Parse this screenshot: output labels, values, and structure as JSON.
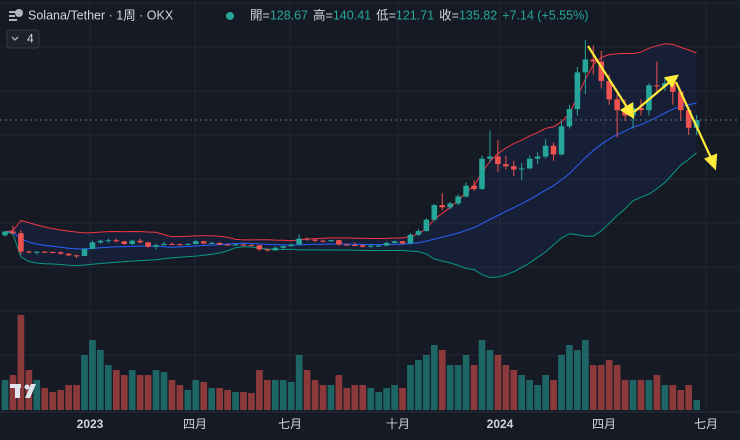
{
  "chart_data": {
    "type": "candlestick",
    "title": "Solana/Tether · 1周 · OKX",
    "badge": "4",
    "ohlc_labels": [
      "開=",
      "高=",
      "低=",
      "收="
    ],
    "change": "+7.14 (+5.55%)",
    "up_color": "#26a69a",
    "down_color": "#ef5350",
    "x_labels": [
      "2023",
      "四月",
      "七月",
      "十月",
      "2024",
      "四月",
      "七月"
    ],
    "candles": {
      "open": [
        29,
        32.5,
        31,
        14,
        13.5,
        13.8,
        13.5,
        13.3,
        12,
        10.5,
        9.9,
        16.5,
        22.5,
        24,
        24.5,
        23.5,
        21,
        24,
        22.5,
        18.5,
        20,
        21,
        20.8,
        20.5,
        21,
        23.5,
        21.5,
        22,
        20.5,
        20,
        20.5,
        20,
        19.8,
        16,
        15,
        17.5,
        19,
        20.5,
        26,
        25,
        24,
        23.5,
        24.5,
        20.5,
        20,
        19.8,
        18.5,
        19.5,
        19.5,
        22,
        23.5,
        21.5,
        29.5,
        33,
        43.5,
        57,
        55,
        58.5,
        65,
        75,
        72,
        100,
        102,
        95,
        93,
        90,
        91,
        100,
        102,
        112,
        104,
        130,
        146,
        180,
        192,
        190,
        172,
        155,
        145,
        140,
        147,
        145,
        168,
        167,
        170,
        162,
        145,
        128.67
      ],
      "high": [
        33,
        38,
        34,
        15,
        14.5,
        14.5,
        14,
        14,
        12.5,
        11,
        17,
        24,
        25,
        26,
        26,
        24,
        25,
        26,
        22.8,
        21,
        23,
        22.5,
        21.5,
        21.8,
        25,
        24,
        23,
        22.5,
        21,
        21,
        21,
        21,
        20,
        16.5,
        18.5,
        19.5,
        21,
        30,
        27,
        26,
        25,
        25,
        25,
        21.5,
        22.5,
        20.5,
        20,
        20,
        23,
        24,
        24,
        31,
        35,
        45,
        58,
        68,
        60,
        67,
        78,
        80,
        103,
        126,
        117,
        103,
        98,
        96,
        103,
        106,
        118,
        115,
        135,
        150,
        185,
        210,
        205,
        200,
        178,
        160,
        155,
        152,
        155,
        170,
        190,
        175,
        177,
        164,
        148,
        140.41
      ],
      "low": [
        28,
        30,
        11,
        12.5,
        11,
        12.5,
        12.5,
        11,
        9.5,
        8,
        9.8,
        16,
        21,
        22,
        22.5,
        20,
        20,
        21.5,
        17.5,
        16,
        19.5,
        20,
        19.5,
        20,
        20.5,
        20.5,
        21,
        20,
        19.5,
        19.5,
        19,
        19.5,
        14.5,
        14,
        14.8,
        16.5,
        18.5,
        20,
        24,
        22.5,
        22.5,
        23,
        19.5,
        19.5,
        19.5,
        17.5,
        17.5,
        18.5,
        19,
        21.5,
        20.5,
        21,
        28.5,
        32.5,
        42,
        52,
        53,
        57,
        64,
        70,
        71,
        97,
        88,
        90,
        84,
        80,
        90,
        95,
        100,
        98,
        103,
        128,
        140,
        160,
        178,
        165,
        150,
        120,
        135,
        128,
        140,
        140,
        160,
        163,
        150,
        135,
        122,
        121.71
      ],
      "close": [
        32.5,
        31,
        14,
        13.5,
        13.8,
        13.5,
        13.3,
        12,
        10.5,
        9.9,
        16.5,
        22.5,
        24,
        24.5,
        23.5,
        21,
        24,
        22.5,
        18.5,
        20,
        21,
        20.8,
        20.5,
        21,
        23.5,
        21.5,
        22,
        20.5,
        20,
        20.5,
        20,
        19.8,
        16,
        15,
        17.5,
        19,
        20.5,
        26,
        25,
        24,
        23.5,
        24.5,
        20.5,
        20,
        19.8,
        18.5,
        19.5,
        19.5,
        22,
        23.5,
        21.5,
        29.5,
        33,
        43.5,
        57,
        55,
        58.5,
        65,
        75,
        72,
        100,
        102,
        95,
        93,
        90,
        91,
        100,
        102,
        112,
        104,
        130,
        146,
        180,
        192,
        190,
        172,
        155,
        145,
        140,
        147,
        145,
        168,
        167,
        170,
        162,
        145,
        128.67,
        135.82
      ]
    },
    "volume": [
      30,
      35,
      95,
      40,
      30,
      22,
      18,
      20,
      25,
      25,
      55,
      70,
      60,
      45,
      40,
      35,
      40,
      35,
      35,
      40,
      38,
      30,
      25,
      20,
      30,
      28,
      22,
      22,
      20,
      18,
      18,
      17,
      40,
      30,
      30,
      30,
      28,
      55,
      40,
      30,
      25,
      25,
      35,
      22,
      25,
      25,
      22,
      18,
      22,
      25,
      22,
      45,
      50,
      55,
      65,
      60,
      45,
      45,
      55,
      45,
      70,
      60,
      55,
      45,
      40,
      35,
      30,
      25,
      35,
      30,
      55,
      65,
      60,
      70,
      45,
      45,
      50,
      45,
      30,
      30,
      30,
      30,
      35,
      25,
      25,
      20,
      25,
      10
    ]
  }
}
